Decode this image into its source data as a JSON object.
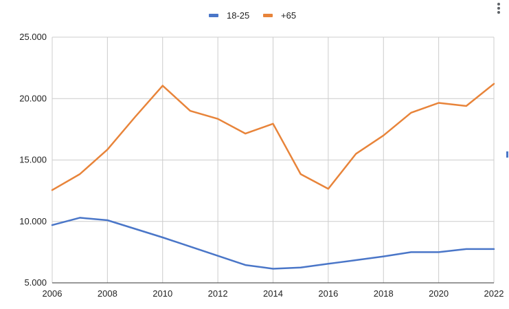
{
  "chart_data": {
    "type": "line",
    "x": [
      2006,
      2007,
      2008,
      2009,
      2010,
      2011,
      2012,
      2013,
      2014,
      2015,
      2016,
      2017,
      2018,
      2019,
      2020,
      2021,
      2022
    ],
    "series": [
      {
        "name": "18-25",
        "color": "#4a76c8",
        "values": [
          9700,
          10300,
          10100,
          9400,
          8700,
          7950,
          7200,
          6450,
          6150,
          6250,
          6550,
          6850,
          7150,
          7500,
          7500,
          7750,
          7750
        ]
      },
      {
        "name": "+65",
        "color": "#e8843a",
        "values": [
          12550,
          13850,
          15850,
          18500,
          21050,
          19000,
          18350,
          17150,
          17950,
          13850,
          12650,
          15500,
          17000,
          18850,
          19650,
          19400,
          21200
        ]
      }
    ],
    "xlim": [
      2006,
      2022
    ],
    "ylim": [
      5000,
      25000
    ],
    "x_ticks": [
      "2006",
      "2008",
      "2010",
      "2012",
      "2014",
      "2016",
      "2018",
      "2020",
      "2022"
    ],
    "x_tick_values": [
      2006,
      2008,
      2010,
      2012,
      2014,
      2016,
      2018,
      2020,
      2022
    ],
    "y_ticks": [
      "5.000",
      "10.000",
      "15.000",
      "20.000",
      "25.000"
    ],
    "y_tick_values": [
      5000,
      10000,
      15000,
      20000,
      25000
    ],
    "grid": true,
    "legend_position": "top-center",
    "title": "",
    "xlabel": "",
    "ylabel": ""
  },
  "colors": {
    "grid": "#cccccc",
    "axis": "#333333",
    "text": "#222222"
  },
  "icons": {
    "more_menu": "more-vert-icon"
  }
}
